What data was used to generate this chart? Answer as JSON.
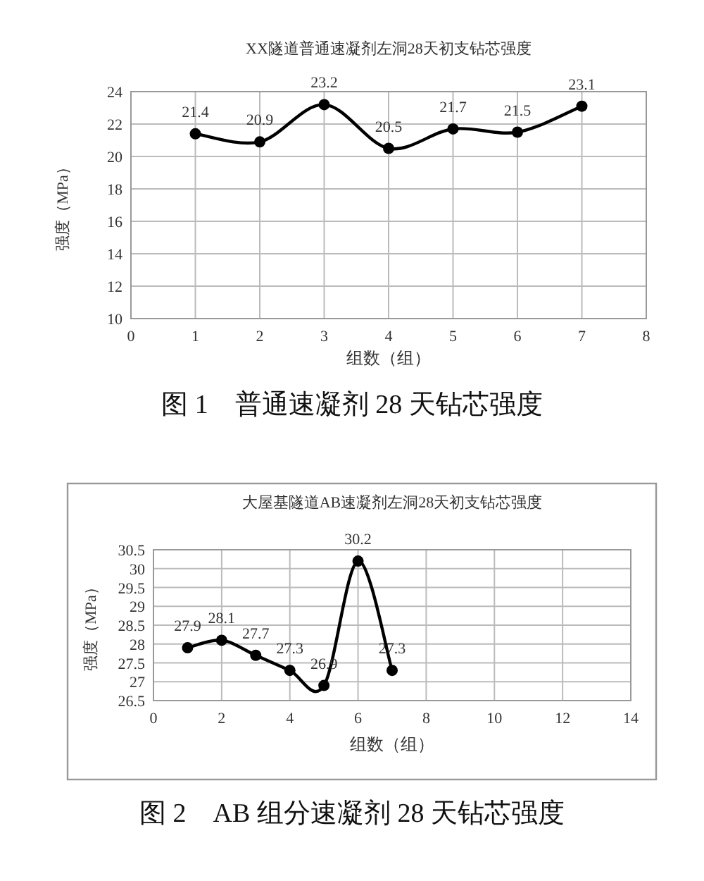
{
  "chart_data": [
    {
      "type": "line",
      "title": "XX隧道普通速凝剂左洞28天初支钻芯强度",
      "xlabel": "组数（组）",
      "ylabel": "强度（MPa）",
      "x": [
        1,
        2,
        3,
        4,
        5,
        6,
        7
      ],
      "series": [
        {
          "color": "#000000",
          "values": [
            21.4,
            20.9,
            23.2,
            20.5,
            21.7,
            21.5,
            23.1
          ]
        }
      ],
      "xlim": [
        0,
        8
      ],
      "xticks": [
        0,
        1,
        2,
        3,
        4,
        5,
        6,
        7,
        8
      ],
      "ylim": [
        10,
        24
      ],
      "yticks": [
        10,
        12,
        14,
        16,
        18,
        20,
        22,
        24
      ],
      "grid": true,
      "marker": "circle",
      "data_labels": true,
      "annotations": [
        "图 1　普通速凝剂 28 天钻芯强度"
      ]
    },
    {
      "type": "line",
      "title": "大屋基隧道AB速凝剂左洞28天初支钻芯强度",
      "xlabel": "组数（组）",
      "ylabel": "强度（MPa）",
      "x": [
        1,
        2,
        3,
        4,
        5,
        6,
        7
      ],
      "series": [
        {
          "color": "#000000",
          "values": [
            27.9,
            28.1,
            27.7,
            27.3,
            26.9,
            30.2,
            27.3
          ]
        }
      ],
      "xlim": [
        0,
        14
      ],
      "xticks": [
        0,
        2,
        4,
        6,
        8,
        10,
        12,
        14
      ],
      "ylim": [
        26.5,
        30.5
      ],
      "yticks": [
        26.5,
        27,
        27.5,
        28,
        28.5,
        29,
        29.5,
        30,
        30.5
      ],
      "grid": true,
      "marker": "circle",
      "data_labels": true,
      "annotations": [
        "图 2　AB 组分速凝剂 28 天钻芯强度"
      ]
    }
  ]
}
